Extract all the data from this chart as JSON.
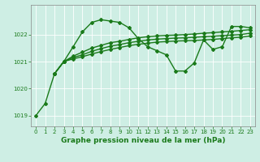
{
  "bg_color": "#ceeee4",
  "grid_color": "#ffffff",
  "line_color": "#1a7a1a",
  "title": "Graphe pression niveau de la mer (hPa)",
  "xlim": [
    -0.5,
    23.5
  ],
  "ylim": [
    1018.6,
    1023.1
  ],
  "yticks": [
    1019,
    1020,
    1021,
    1022
  ],
  "xticks": [
    0,
    1,
    2,
    3,
    4,
    5,
    6,
    7,
    8,
    9,
    10,
    11,
    12,
    13,
    14,
    15,
    16,
    17,
    18,
    19,
    20,
    21,
    22,
    23
  ],
  "series": [
    {
      "x": [
        0,
        1,
        2,
        3,
        4,
        5,
        6,
        7,
        8,
        9,
        10,
        11,
        12,
        13,
        14,
        15,
        16,
        17,
        18,
        19,
        20,
        21,
        22,
        23
      ],
      "y": [
        1019.0,
        1019.45,
        1020.55,
        1021.0,
        1021.55,
        1022.1,
        1022.45,
        1022.55,
        1022.5,
        1022.45,
        1022.25,
        1021.85,
        1021.55,
        1021.4,
        1021.25,
        1020.65,
        1020.65,
        1020.95,
        1021.8,
        1021.45,
        1021.55,
        1022.3,
        1022.3,
        1022.25
      ],
      "marker": "D",
      "markersize": 2.0,
      "linewidth": 1.0,
      "linestyle": "-"
    },
    {
      "x": [
        2,
        3,
        4,
        5,
        6,
        7,
        8,
        9,
        10,
        11,
        12,
        13,
        14,
        15,
        16,
        17,
        18,
        19,
        20,
        21,
        22,
        23
      ],
      "y": [
        1020.55,
        1021.0,
        1021.2,
        1021.35,
        1021.5,
        1021.6,
        1021.7,
        1021.75,
        1021.82,
        1021.88,
        1021.92,
        1021.95,
        1021.97,
        1021.98,
        1022.0,
        1022.02,
        1022.05,
        1022.07,
        1022.1,
        1022.12,
        1022.15,
        1022.18
      ],
      "marker": "D",
      "markersize": 2.0,
      "linewidth": 1.0,
      "linestyle": "-"
    },
    {
      "x": [
        2,
        3,
        4,
        5,
        6,
        7,
        8,
        9,
        10,
        11,
        12,
        13,
        14,
        15,
        16,
        17,
        18,
        19,
        20,
        21,
        22,
        23
      ],
      "y": [
        1020.55,
        1021.0,
        1021.15,
        1021.25,
        1021.38,
        1021.48,
        1021.57,
        1021.63,
        1021.7,
        1021.75,
        1021.8,
        1021.83,
        1021.85,
        1021.87,
        1021.88,
        1021.9,
        1021.92,
        1021.94,
        1021.96,
        1021.98,
        1022.0,
        1022.05
      ],
      "marker": "D",
      "markersize": 2.0,
      "linewidth": 1.0,
      "linestyle": "-"
    },
    {
      "x": [
        2,
        3,
        4,
        5,
        6,
        7,
        8,
        9,
        10,
        11,
        12,
        13,
        14,
        15,
        16,
        17,
        18,
        19,
        20,
        21,
        22,
        23
      ],
      "y": [
        1020.55,
        1021.0,
        1021.1,
        1021.18,
        1021.28,
        1021.37,
        1021.45,
        1021.52,
        1021.59,
        1021.64,
        1021.68,
        1021.72,
        1021.74,
        1021.76,
        1021.77,
        1021.78,
        1021.8,
        1021.82,
        1021.85,
        1021.88,
        1021.9,
        1021.95
      ],
      "marker": "D",
      "markersize": 2.0,
      "linewidth": 1.0,
      "linestyle": "-"
    }
  ],
  "title_fontsize": 6.5,
  "tick_fontsize": 5,
  "ylabel_fontsize": 5
}
